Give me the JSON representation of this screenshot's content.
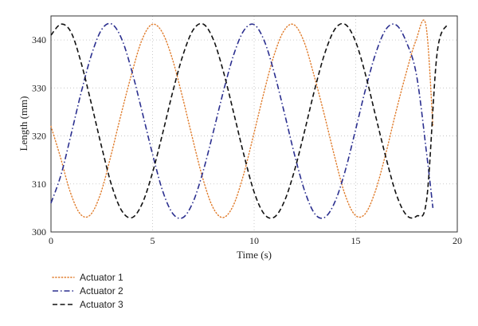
{
  "chart_data": {
    "type": "line",
    "xlabel": "Time (s)",
    "ylabel": "Length (mm)",
    "xlim": [
      0,
      20
    ],
    "ylim": [
      300,
      345
    ],
    "xticks": [
      0,
      5,
      10,
      15,
      20
    ],
    "yticks": [
      300,
      310,
      320,
      330,
      340
    ],
    "grid": true,
    "legend_position": "bottom-left, below plot",
    "series": [
      {
        "name": "Actuator 1",
        "color": "#e07b2a",
        "style": "dotted",
        "x": [
          0,
          0.45,
          0.95,
          1.45,
          1.95,
          2.45,
          2.95,
          3.45,
          3.95,
          4.45,
          4.95,
          5.45,
          5.95,
          6.45,
          6.95,
          7.45,
          7.95,
          8.45,
          8.95,
          9.45,
          9.95,
          10.45,
          10.95,
          11.45,
          11.95,
          12.45,
          12.95,
          13.45,
          13.95,
          14.45,
          14.95,
          15.45,
          15.95,
          16.45,
          16.95,
          17.45,
          17.95,
          18.45,
          18.8
        ],
        "y": [
          322.0,
          315.8,
          308.3,
          303.7,
          303.6,
          308.1,
          315.9,
          324.5,
          332.6,
          339.7,
          343.2,
          341.8,
          336.4,
          328.5,
          319.8,
          311.5,
          305.3,
          303.0,
          305.3,
          311.5,
          319.8,
          328.5,
          336.4,
          341.8,
          343.2,
          339.7,
          332.6,
          324.5,
          315.9,
          308.1,
          303.6,
          303.7,
          308.3,
          315.8,
          324.5,
          332.6,
          339.7,
          343.2,
          322.0
        ]
      },
      {
        "name": "Actuator 2",
        "color": "#2b2f8f",
        "style": "dashdot",
        "x": [
          0,
          0.5,
          1.0,
          1.5,
          2.0,
          2.5,
          3.0,
          3.5,
          4.0,
          4.5,
          5.0,
          5.5,
          6.0,
          6.5,
          7.0,
          7.5,
          8.0,
          8.5,
          9.0,
          9.5,
          10.0,
          10.5,
          11.0,
          11.5,
          12.0,
          12.5,
          13.0,
          13.5,
          14.0,
          14.5,
          15.0,
          15.5,
          16.0,
          16.5,
          17.0,
          17.5,
          18.0,
          18.5,
          18.8
        ],
        "y": [
          306.0,
          312.0,
          320.5,
          329.3,
          337.0,
          342.2,
          343.3,
          340.0,
          333.2,
          324.8,
          316.2,
          308.5,
          303.8,
          303.0,
          306.3,
          312.8,
          321.0,
          329.5,
          337.0,
          342.0,
          343.2,
          339.8,
          333.0,
          324.6,
          315.9,
          308.4,
          303.7,
          303.1,
          306.5,
          313.0,
          321.4,
          330.0,
          337.4,
          342.3,
          343.1,
          339.5,
          332.5,
          316.0,
          305.0
        ]
      },
      {
        "name": "Actuator 3",
        "color": "#111111",
        "style": "dashed",
        "x": [
          0,
          0.5,
          1.0,
          1.5,
          2.0,
          2.5,
          3.0,
          3.5,
          4.0,
          4.5,
          5.0,
          5.5,
          6.0,
          6.5,
          7.0,
          7.5,
          8.0,
          8.5,
          9.0,
          9.5,
          10.0,
          10.5,
          11.0,
          11.5,
          12.0,
          12.5,
          13.0,
          13.5,
          14.0,
          14.5,
          15.0,
          15.5,
          16.0,
          16.5,
          17.0,
          17.5,
          18.0,
          18.5,
          19.0,
          19.5
        ],
        "y": [
          341.0,
          343.3,
          341.5,
          335.0,
          326.5,
          317.6,
          309.5,
          304.3,
          303.0,
          306.0,
          312.4,
          320.6,
          329.3,
          336.9,
          342.1,
          343.3,
          340.0,
          333.2,
          324.7,
          316.0,
          308.3,
          303.7,
          303.1,
          306.5,
          313.0,
          321.3,
          330.0,
          337.5,
          342.4,
          343.2,
          339.6,
          332.5,
          323.8,
          315.3,
          307.8,
          303.5,
          303.3,
          307.0,
          337.0,
          343.2
        ]
      }
    ]
  }
}
